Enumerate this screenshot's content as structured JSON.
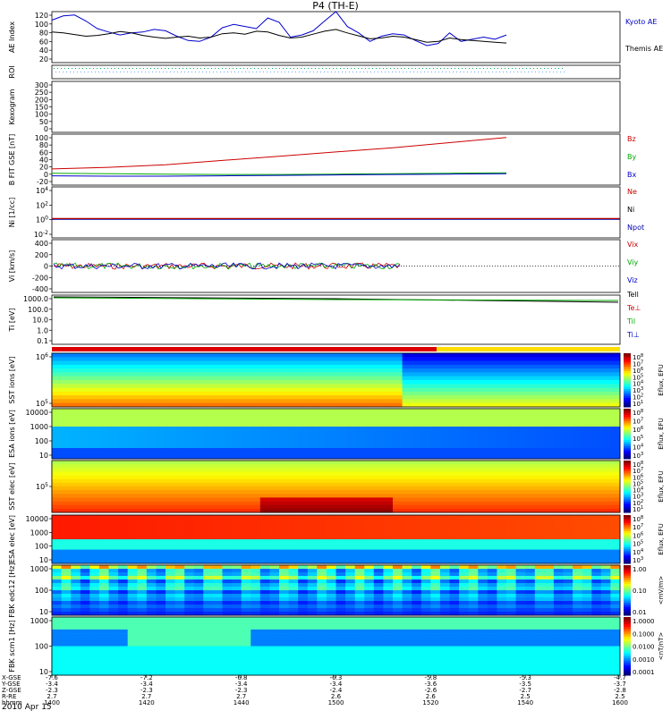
{
  "title": "P4 (TH-E)",
  "date": "2010 Apr 15",
  "chart_data": [
    {
      "id": "ae",
      "type": "line",
      "ylabel": "AE Index",
      "ylim": [
        0,
        120
      ],
      "yticks": [
        "120",
        "100",
        "80",
        "60",
        "40",
        "20"
      ],
      "x": [
        1400,
        1404,
        1408,
        1412,
        1416,
        1420,
        1424,
        1428,
        1432,
        1436,
        1440,
        1444,
        1448,
        1452,
        1456,
        1460,
        1464,
        1468,
        1472,
        1476,
        1480,
        1484,
        1488,
        1492,
        1496,
        1500,
        1504,
        1508,
        1512,
        1516,
        1520,
        1524,
        1528,
        1532,
        1536,
        1540,
        1544,
        1548,
        1552,
        1556,
        1560
      ],
      "series": [
        {
          "name": "Kyoto AE",
          "color": "#0000cc",
          "values": [
            100,
            110,
            112,
            98,
            80,
            72,
            65,
            70,
            72,
            78,
            75,
            62,
            52,
            50,
            60,
            82,
            90,
            85,
            80,
            105,
            95,
            60,
            65,
            75,
            98,
            120,
            85,
            70,
            50,
            62,
            68,
            65,
            52,
            40,
            45,
            70,
            50,
            55,
            60,
            55,
            65
          ]
        },
        {
          "name": "Themis AE",
          "color": "#000000",
          "values": [
            72,
            70,
            66,
            62,
            64,
            68,
            73,
            70,
            64,
            60,
            57,
            60,
            62,
            58,
            60,
            68,
            70,
            67,
            74,
            72,
            64,
            58,
            60,
            67,
            74,
            78,
            70,
            63,
            56,
            58,
            62,
            60,
            54,
            48,
            50,
            58,
            54,
            52,
            50,
            48,
            46
          ]
        }
      ]
    },
    {
      "id": "roi",
      "type": "line",
      "ylabel": "ROI"
    },
    {
      "id": "kp",
      "type": "line",
      "ylabel": "Kexogram",
      "ylim": [
        0,
        300
      ],
      "yticks": [
        "300",
        "250",
        "200",
        "150",
        "100",
        "50",
        "0"
      ]
    },
    {
      "id": "bfield",
      "type": "line",
      "ylabel": "B FIT GSE [nT]",
      "ylim": [
        -20,
        100
      ],
      "yticks": [
        "100",
        "80",
        "60",
        "40",
        "20",
        "0",
        "-20"
      ],
      "x": [
        1400,
        1420,
        1440,
        1460,
        1480,
        1500,
        1520,
        1540,
        1560
      ],
      "series": [
        {
          "name": "Bz",
          "color": "#cc0000",
          "values": [
            18,
            22,
            28,
            38,
            48,
            58,
            68,
            80,
            92
          ]
        },
        {
          "name": "By",
          "color": "#00aa00",
          "values": [
            8,
            7,
            6,
            5,
            5,
            6,
            7,
            8,
            9
          ]
        },
        {
          "name": "Bx",
          "color": "#0000cc",
          "values": [
            2,
            1,
            1,
            2,
            3,
            4,
            5,
            6,
            7
          ]
        }
      ]
    },
    {
      "id": "density",
      "type": "line",
      "ylabel": "Ni [1/cc]",
      "yscale": "log",
      "yticks": [
        "10^4",
        "10^2",
        "10^0",
        "10^-2"
      ],
      "legend": [
        {
          "name": "Ne",
          "color": "#cc0000"
        },
        {
          "name": "Ni",
          "color": "#000000"
        },
        {
          "name": "Npot",
          "color": "#0000aa"
        }
      ]
    },
    {
      "id": "velocity",
      "type": "line",
      "ylabel": "Vi [km/s]",
      "ylim": [
        -400,
        400
      ],
      "yticks": [
        "400",
        "200",
        "0",
        "-200",
        "-400"
      ],
      "legend": [
        {
          "name": "Vix",
          "color": "#cc0000"
        },
        {
          "name": "Viy",
          "color": "#00aa00"
        },
        {
          "name": "Viz",
          "color": "#0000cc"
        }
      ]
    },
    {
      "id": "temperature",
      "type": "line",
      "ylabel": "Ti [eV]",
      "yscale": "log",
      "yticks": [
        "1000.0",
        "100.0",
        "10.0",
        "1.0",
        "0.1"
      ],
      "legend": [
        {
          "name": "Tell",
          "color": "#000000"
        },
        {
          "name": "Te⊥",
          "color": "#cc0000"
        },
        {
          "name": "Til",
          "color": "#00aa00"
        },
        {
          "name": "Ti⊥",
          "color": "#0000cc"
        }
      ]
    },
    {
      "id": "spec1",
      "type": "heatmap",
      "ylabel": "SST ions [eV]",
      "yticks": [
        "10^6",
        "10^5"
      ],
      "cbar_label": "Eflux, EFU",
      "cbar_ticks": [
        "10^8",
        "10^7",
        "10^6",
        "10^5",
        "10^4",
        "10^3",
        "10^2",
        "10^1"
      ]
    },
    {
      "id": "spec2",
      "type": "heatmap",
      "ylabel": "ESA ions [eV]",
      "yticks": [
        "10000",
        "1000",
        "100",
        "10"
      ],
      "cbar_label": "Eflux, EFU",
      "cbar_ticks": [
        "10^8",
        "10^7",
        "10^6",
        "10^5",
        "10^4",
        "10^3"
      ]
    },
    {
      "id": "spec3",
      "type": "heatmap",
      "ylabel": "SST elec [eV]",
      "yticks": [
        "10^5"
      ],
      "cbar_label": "Eflux, EFU",
      "cbar_ticks": [
        "10^8",
        "10^7",
        "10^6",
        "10^5",
        "10^4",
        "10^3",
        "10^2",
        "10^1"
      ]
    },
    {
      "id": "spec4",
      "type": "heatmap",
      "ylabel": "ESA elec [eV]",
      "yticks": [
        "10000",
        "1000",
        "100",
        "10"
      ],
      "cbar_label": "Eflux, EFU",
      "cbar_ticks": [
        "10^8",
        "10^7",
        "10^6",
        "10^5",
        "10^4",
        "10^3"
      ]
    },
    {
      "id": "spec5",
      "type": "heatmap",
      "ylabel": "FBK edc12 [Hz]",
      "yticks": [
        "1000",
        "100",
        "10"
      ],
      "cbar_label": "<mV/m>",
      "cbar_ticks": [
        "1.00",
        "0.10",
        "0.01"
      ]
    },
    {
      "id": "spec6",
      "type": "heatmap",
      "ylabel": "FBK scm1 [Hz]",
      "yticks": [
        "1000",
        "100",
        "10"
      ],
      "cbar_label": "<nT/nT>",
      "cbar_ticks": [
        "1.0000",
        "0.1000",
        "0.0100",
        "0.0010",
        "0.0001"
      ]
    }
  ],
  "xaxis": {
    "row_labels": [
      "X-GSE",
      "Y-GSE",
      "Z-GSE",
      "R-RE",
      "hhmm"
    ],
    "ticks": [
      {
        "x": "-7.6",
        "y": "-3.4",
        "z": "-2.3",
        "r": "2.7",
        "t": "1400"
      },
      {
        "x": "-7.2",
        "y": "-3.4",
        "z": "-2.3",
        "r": "2.7",
        "t": "1420"
      },
      {
        "x": "-6.8",
        "y": "-3.4",
        "z": "-2.3",
        "r": "2.7",
        "t": "1440"
      },
      {
        "x": "-6.3",
        "y": "-3.4",
        "z": "-2.4",
        "r": "2.6",
        "t": "1500"
      },
      {
        "x": "-5.8",
        "y": "-3.6",
        "z": "-2.6",
        "r": "2.6",
        "t": "1520"
      },
      {
        "x": "-5.3",
        "y": "-3.5",
        "z": "-2.7",
        "r": "2.5",
        "t": "1540"
      },
      {
        "x": "-4.7",
        "y": "-3.7",
        "z": "-2.8",
        "r": "2.5",
        "t": "1600"
      }
    ]
  }
}
